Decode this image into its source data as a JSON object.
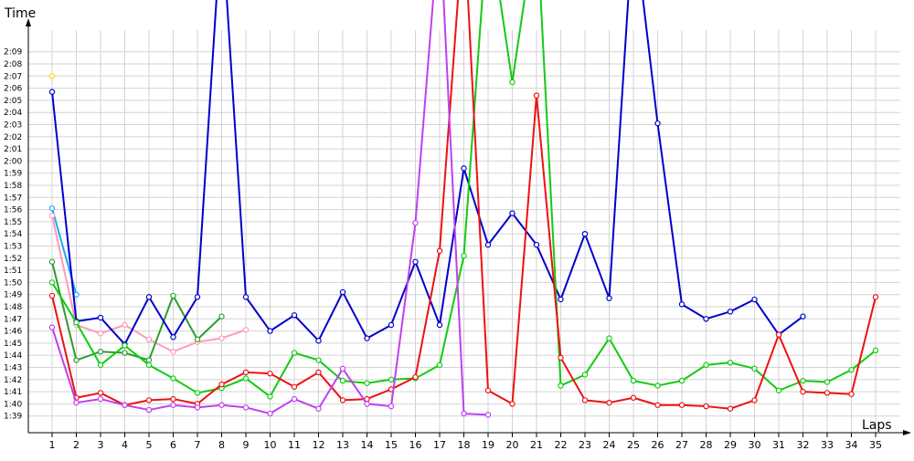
{
  "chart_data": {
    "type": "line",
    "ylabel": "Time",
    "xlabel": "Laps",
    "x": [
      1,
      2,
      3,
      4,
      5,
      6,
      7,
      8,
      9,
      10,
      11,
      12,
      13,
      14,
      15,
      16,
      17,
      18,
      19,
      20,
      21,
      22,
      23,
      24,
      25,
      26,
      27,
      28,
      29,
      30,
      31,
      32,
      33,
      34,
      35
    ],
    "y_ticks": [
      "1:39",
      "1:40",
      "1:41",
      "1:42",
      "1:43",
      "1:44",
      "1:45",
      "1:46",
      "1:47",
      "1:48",
      "1:49",
      "1:50",
      "1:51",
      "1:52",
      "1:53",
      "1:54",
      "1:55",
      "1:56",
      "1:57",
      "1:58",
      "1:59",
      "2:00",
      "2:01",
      "2:02",
      "2:03",
      "2:04",
      "2:05",
      "2:06",
      "2:07",
      "2:08",
      "2:09"
    ],
    "ylim_seconds": [
      98,
      130
    ],
    "grid": true,
    "series": [
      {
        "color": "#ffd800",
        "values": [
          127.0,
          null,
          null,
          null,
          null,
          null,
          null,
          null,
          null,
          null,
          null,
          null,
          null,
          null,
          null,
          null,
          null,
          null,
          null,
          null,
          null,
          null,
          null,
          null,
          null,
          null,
          null,
          null,
          null,
          null,
          null,
          null,
          null,
          null,
          null
        ]
      },
      {
        "color": "#1ea7ff",
        "values": [
          116.1,
          109.0,
          null,
          null,
          null,
          null,
          null,
          null,
          null,
          null,
          null,
          null,
          null,
          null,
          null,
          null,
          null,
          null,
          null,
          null,
          null,
          null,
          null,
          null,
          null,
          null,
          null,
          null,
          null,
          null,
          null,
          null,
          null,
          null,
          null
        ]
      },
      {
        "color": "#ff9bb4",
        "values": [
          115.5,
          106.5,
          105.8,
          106.5,
          105.3,
          104.3,
          105.1,
          105.4,
          106.1,
          null,
          null,
          null,
          null,
          null,
          null,
          null,
          null,
          null,
          null,
          null,
          null,
          null,
          null,
          null,
          null,
          null,
          null,
          null,
          null,
          null,
          null,
          null,
          null,
          null,
          null
        ]
      },
      {
        "color": "#2e9c2e",
        "values": [
          111.7,
          103.6,
          104.3,
          104.2,
          103.6,
          108.9,
          105.3,
          107.2,
          null,
          null,
          null,
          null,
          null,
          null,
          null,
          null,
          null,
          null,
          null,
          null,
          null,
          null,
          null,
          null,
          null,
          null,
          null,
          null,
          null,
          null,
          null,
          null,
          null,
          null,
          null
        ]
      },
      {
        "color": "#0000cc",
        "values": [
          125.7,
          106.8,
          107.1,
          104.9,
          108.8,
          105.5,
          108.8,
          140.0,
          108.8,
          106.0,
          107.3,
          105.2,
          109.2,
          105.4,
          106.5,
          111.7,
          106.5,
          119.4,
          113.1,
          115.7,
          113.1,
          108.6,
          114.0,
          108.7,
          140.0,
          123.1,
          108.2,
          107.0,
          107.6,
          108.6,
          105.7,
          107.2,
          null,
          null,
          null
        ]
      },
      {
        "color": "#11cc11",
        "values": [
          110.0,
          106.7,
          103.2,
          104.8,
          103.2,
          102.1,
          100.9,
          101.3,
          102.1,
          100.6,
          104.2,
          103.6,
          101.9,
          101.7,
          102.0,
          102.1,
          103.2,
          112.2,
          140.0,
          126.5,
          140.0,
          101.5,
          102.4,
          105.4,
          101.9,
          101.5,
          101.9,
          103.2,
          103.4,
          102.9,
          101.1,
          101.9,
          101.8,
          102.8,
          104.4
        ]
      },
      {
        "color": "#ee1111",
        "values": [
          108.9,
          100.5,
          100.9,
          99.9,
          100.3,
          100.4,
          100.0,
          101.6,
          102.6,
          102.5,
          101.4,
          102.6,
          100.3,
          100.4,
          101.2,
          102.2,
          112.6,
          140.0,
          101.1,
          100.0,
          125.4,
          103.8,
          100.3,
          100.1,
          100.5,
          99.9,
          99.9,
          99.8,
          99.6,
          100.3,
          105.7,
          101.0,
          100.9,
          100.8,
          108.8
        ]
      },
      {
        "color": "#c040ef",
        "values": [
          106.3,
          100.1,
          100.4,
          99.9,
          99.5,
          99.9,
          99.7,
          99.9,
          99.7,
          99.2,
          100.4,
          99.6,
          102.9,
          100.0,
          99.8,
          114.9,
          140.0,
          99.2,
          99.1,
          null,
          null,
          null,
          null,
          null,
          null,
          null,
          null,
          null,
          null,
          null,
          null,
          null,
          null,
          null,
          null
        ]
      }
    ]
  }
}
